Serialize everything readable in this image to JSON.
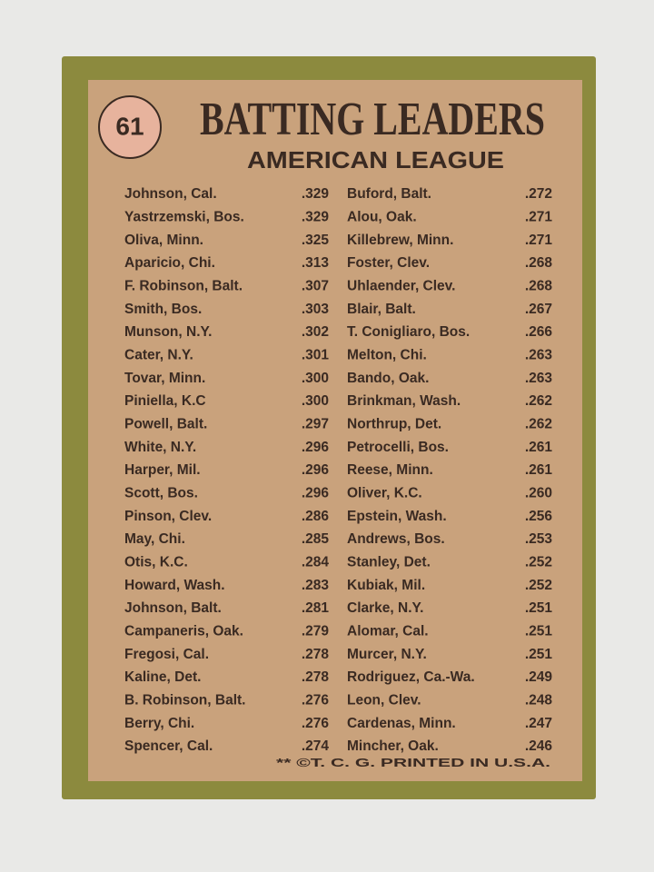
{
  "badge": "61",
  "header": {
    "title": "BATTING LEADERS",
    "subtitle": "AMERICAN LEAGUE"
  },
  "columns": [
    {
      "rows": [
        [
          "Johnson, Cal.",
          ".329"
        ],
        [
          "Yastrzemski, Bos.",
          ".329"
        ],
        [
          "Oliva, Minn.",
          ".325"
        ],
        [
          "Aparicio, Chi.",
          ".313"
        ],
        [
          "F. Robinson, Balt.",
          ".307"
        ],
        [
          "Smith, Bos.",
          ".303"
        ],
        [
          "Munson, N.Y.",
          ".302"
        ],
        [
          "Cater, N.Y.",
          ".301"
        ],
        [
          "Tovar, Minn.",
          ".300"
        ],
        [
          "Piniella, K.C",
          ".300"
        ],
        [
          "Powell, Balt.",
          ".297"
        ],
        [
          "White, N.Y.",
          ".296"
        ],
        [
          "Harper, Mil.",
          ".296"
        ],
        [
          "Scott, Bos.",
          ".296"
        ],
        [
          "Pinson, Clev.",
          ".286"
        ],
        [
          "May, Chi.",
          ".285"
        ],
        [
          "Otis, K.C.",
          ".284"
        ],
        [
          "Howard, Wash.",
          ".283"
        ],
        [
          "Johnson, Balt.",
          ".281"
        ],
        [
          "Campaneris, Oak.",
          ".279"
        ],
        [
          "Fregosi, Cal.",
          ".278"
        ],
        [
          "Kaline, Det.",
          ".278"
        ],
        [
          "B. Robinson, Balt.",
          ".276"
        ],
        [
          "Berry, Chi.",
          ".276"
        ],
        [
          "Spencer, Cal.",
          ".274"
        ]
      ]
    },
    {
      "rows": [
        [
          "Buford, Balt.",
          ".272"
        ],
        [
          "Alou, Oak.",
          ".271"
        ],
        [
          "Killebrew, Minn.",
          ".271"
        ],
        [
          "Foster, Clev.",
          ".268"
        ],
        [
          "Uhlaender, Clev.",
          ".268"
        ],
        [
          "Blair, Balt.",
          ".267"
        ],
        [
          "T. Conigliaro, Bos.",
          ".266"
        ],
        [
          "Melton, Chi.",
          ".263"
        ],
        [
          "Bando, Oak.",
          ".263"
        ],
        [
          "Brinkman, Wash.",
          ".262"
        ],
        [
          "Northrup, Det.",
          ".262"
        ],
        [
          "Petrocelli, Bos.",
          ".261"
        ],
        [
          "Reese, Minn.",
          ".261"
        ],
        [
          "Oliver, K.C.",
          ".260"
        ],
        [
          "Epstein, Wash.",
          ".256"
        ],
        [
          "Andrews, Bos.",
          ".253"
        ],
        [
          "Stanley, Det.",
          ".252"
        ],
        [
          "Kubiak, Mil.",
          ".252"
        ],
        [
          "Clarke, N.Y.",
          ".251"
        ],
        [
          "Alomar, Cal.",
          ".251"
        ],
        [
          "Murcer, N.Y.",
          ".251"
        ],
        [
          "Rodriguez, Ca.-Wa.",
          ".249"
        ],
        [
          "Leon, Clev.",
          ".248"
        ],
        [
          "Cardenas, Minn.",
          ".247"
        ],
        [
          "Mincher, Oak.",
          ".246"
        ]
      ]
    }
  ],
  "footer": "** ©T. C. G. PRINTED IN U.S.A."
}
